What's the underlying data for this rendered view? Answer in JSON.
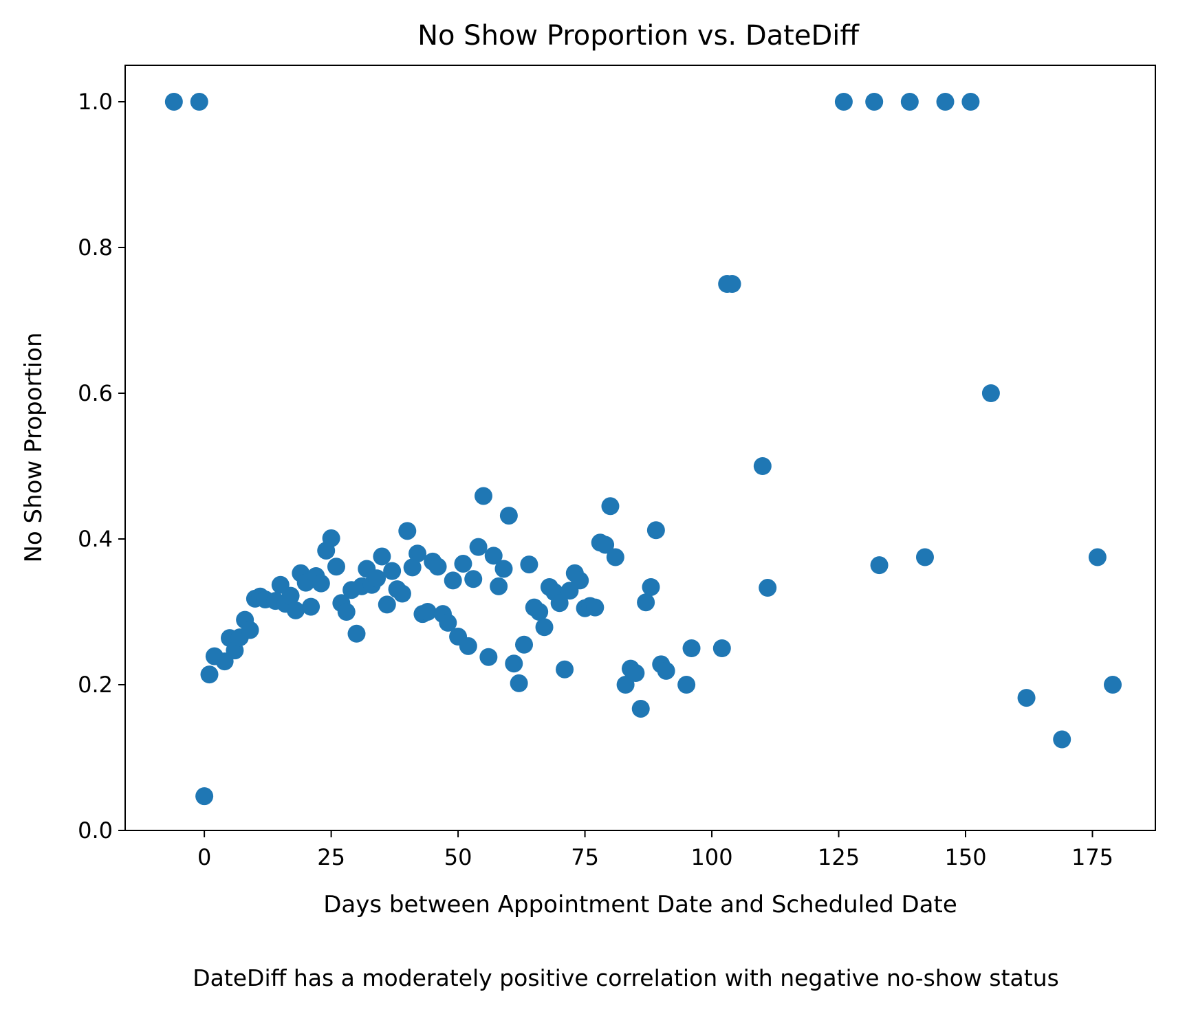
{
  "chart_data": {
    "type": "scatter",
    "title": "No Show Proportion vs. DateDiff",
    "xlabel": "Days between Appointment Date and Scheduled Date",
    "ylabel": "No Show Proportion",
    "caption": "DateDiff has a moderately positive correlation with negative no-show status",
    "xlim": [
      -15.6,
      187.4
    ],
    "ylim": [
      0,
      1.05
    ],
    "xticks": [
      0,
      25,
      50,
      75,
      100,
      125,
      150,
      175
    ],
    "yticks": [
      0.0,
      0.2,
      0.4,
      0.6,
      0.8,
      1.0
    ],
    "xtick_labels": [
      "0",
      "25",
      "50",
      "75",
      "100",
      "125",
      "150",
      "175"
    ],
    "ytick_labels": [
      "0.0",
      "0.2",
      "0.4",
      "0.6",
      "0.8",
      "1.0"
    ],
    "grid": false,
    "marker_color": "#1f77b4",
    "points": [
      [
        -6,
        1.0
      ],
      [
        -1,
        1.0
      ],
      [
        0,
        0.047
      ],
      [
        1,
        0.214
      ],
      [
        2,
        0.239
      ],
      [
        4,
        0.232
      ],
      [
        5,
        0.264
      ],
      [
        6,
        0.247
      ],
      [
        7,
        0.265
      ],
      [
        8,
        0.289
      ],
      [
        9,
        0.275
      ],
      [
        10,
        0.318
      ],
      [
        11,
        0.321
      ],
      [
        12,
        0.317
      ],
      [
        14,
        0.315
      ],
      [
        15,
        0.337
      ],
      [
        16,
        0.311
      ],
      [
        17,
        0.322
      ],
      [
        18,
        0.302
      ],
      [
        19,
        0.353
      ],
      [
        20,
        0.34
      ],
      [
        21,
        0.307
      ],
      [
        22,
        0.349
      ],
      [
        23,
        0.339
      ],
      [
        24,
        0.384
      ],
      [
        25,
        0.401
      ],
      [
        26,
        0.362
      ],
      [
        27,
        0.312
      ],
      [
        28,
        0.3
      ],
      [
        29,
        0.33
      ],
      [
        30,
        0.27
      ],
      [
        31,
        0.335
      ],
      [
        32,
        0.359
      ],
      [
        33,
        0.337
      ],
      [
        34,
        0.346
      ],
      [
        35,
        0.376
      ],
      [
        36,
        0.31
      ],
      [
        37,
        0.356
      ],
      [
        38,
        0.331
      ],
      [
        39,
        0.325
      ],
      [
        40,
        0.411
      ],
      [
        41,
        0.361
      ],
      [
        42,
        0.38
      ],
      [
        43,
        0.297
      ],
      [
        44,
        0.3
      ],
      [
        45,
        0.369
      ],
      [
        46,
        0.362
      ],
      [
        47,
        0.297
      ],
      [
        48,
        0.285
      ],
      [
        49,
        0.343
      ],
      [
        50,
        0.266
      ],
      [
        51,
        0.366
      ],
      [
        52,
        0.253
      ],
      [
        53,
        0.345
      ],
      [
        54,
        0.389
      ],
      [
        55,
        0.459
      ],
      [
        56,
        0.238
      ],
      [
        57,
        0.377
      ],
      [
        58,
        0.335
      ],
      [
        59,
        0.359
      ],
      [
        60,
        0.432
      ],
      [
        61,
        0.229
      ],
      [
        62,
        0.202
      ],
      [
        63,
        0.255
      ],
      [
        64,
        0.365
      ],
      [
        65,
        0.306
      ],
      [
        66,
        0.3
      ],
      [
        67,
        0.279
      ],
      [
        68,
        0.334
      ],
      [
        69,
        0.327
      ],
      [
        70,
        0.312
      ],
      [
        71,
        0.221
      ],
      [
        72,
        0.329
      ],
      [
        73,
        0.353
      ],
      [
        74,
        0.343
      ],
      [
        75,
        0.305
      ],
      [
        76,
        0.308
      ],
      [
        77,
        0.306
      ],
      [
        78,
        0.395
      ],
      [
        79,
        0.392
      ],
      [
        80,
        0.445
      ],
      [
        81,
        0.375
      ],
      [
        83,
        0.2
      ],
      [
        84,
        0.222
      ],
      [
        85,
        0.216
      ],
      [
        86,
        0.167
      ],
      [
        87,
        0.313
      ],
      [
        88,
        0.334
      ],
      [
        89,
        0.412
      ],
      [
        90,
        0.228
      ],
      [
        91,
        0.219
      ],
      [
        95,
        0.2
      ],
      [
        96,
        0.25
      ],
      [
        102,
        0.25
      ],
      [
        103,
        0.75
      ],
      [
        104,
        0.75
      ],
      [
        110,
        0.5
      ],
      [
        111,
        0.333
      ],
      [
        126,
        1.0
      ],
      [
        132,
        1.0
      ],
      [
        133,
        0.364
      ],
      [
        139,
        1.0
      ],
      [
        142,
        0.375
      ],
      [
        146,
        1.0
      ],
      [
        151,
        1.0
      ],
      [
        155,
        0.6
      ],
      [
        162,
        0.182
      ],
      [
        169,
        0.125
      ],
      [
        176,
        0.375
      ],
      [
        179,
        0.2
      ]
    ]
  }
}
